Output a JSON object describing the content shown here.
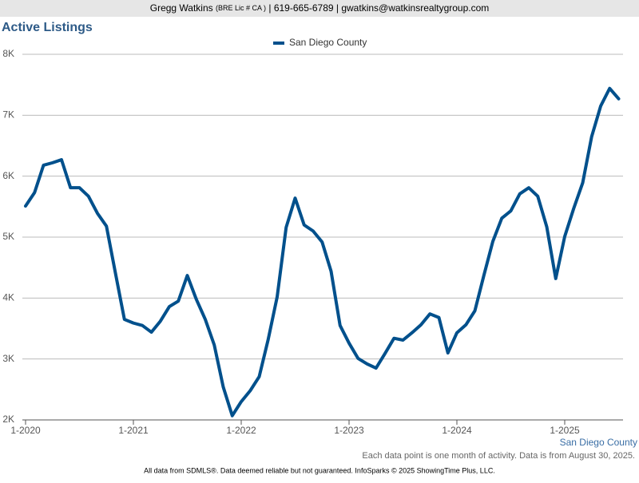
{
  "header": {
    "name": "Gregg Watkins",
    "license": "(BRE Lic # CA )",
    "contact": "| 619-665-6789 | gwatkins@watkinsrealtygroup.com"
  },
  "chart_data": {
    "type": "line",
    "title": "Active Listings",
    "categories": [
      "1-2020",
      null,
      null,
      null,
      null,
      null,
      null,
      null,
      null,
      null,
      null,
      null,
      "1-2021",
      null,
      null,
      null,
      null,
      null,
      null,
      null,
      null,
      null,
      null,
      null,
      "1-2022",
      null,
      null,
      null,
      null,
      null,
      null,
      null,
      null,
      null,
      null,
      null,
      "1-2023",
      null,
      null,
      null,
      null,
      null,
      null,
      null,
      null,
      null,
      null,
      null,
      "1-2024",
      null,
      null,
      null,
      null,
      null,
      null,
      null,
      null,
      null,
      null,
      null,
      "1-2025",
      null,
      null,
      null,
      null,
      null,
      null
    ],
    "series": [
      {
        "name": "San Diego County",
        "color": "#00508c",
        "values": [
          5510,
          5730,
          6180,
          6220,
          6270,
          5810,
          5810,
          5670,
          5390,
          5180,
          4410,
          3650,
          3590,
          3550,
          3440,
          3620,
          3860,
          3950,
          4370,
          3980,
          3650,
          3230,
          2540,
          2070,
          2300,
          2480,
          2710,
          3320,
          4020,
          5160,
          5640,
          5200,
          5100,
          4920,
          4440,
          3550,
          3260,
          3010,
          2920,
          2850,
          3090,
          3340,
          3310,
          3430,
          3560,
          3740,
          3680,
          3100,
          3430,
          3560,
          3790,
          4370,
          4930,
          5310,
          5430,
          5710,
          5810,
          5670,
          5170,
          4320,
          5010,
          5470,
          5890,
          6650,
          7150,
          7440,
          7270
        ]
      }
    ],
    "ylim": [
      2000,
      8000
    ],
    "yticks": [
      {
        "value": 2000,
        "label": "2K"
      },
      {
        "value": 3000,
        "label": "3K"
      },
      {
        "value": 4000,
        "label": "4K"
      },
      {
        "value": 5000,
        "label": "5K"
      },
      {
        "value": 6000,
        "label": "6K"
      },
      {
        "value": 7000,
        "label": "7K"
      },
      {
        "value": 8000,
        "label": "8K"
      }
    ],
    "grid": true,
    "note": "Each data point is one month of activity. Data is from August 30, 2025.",
    "source": "All data from SDMLS®. Data deemed reliable but not guaranteed. InfoSparks © 2025 ShowingTime Plus, LLC."
  }
}
